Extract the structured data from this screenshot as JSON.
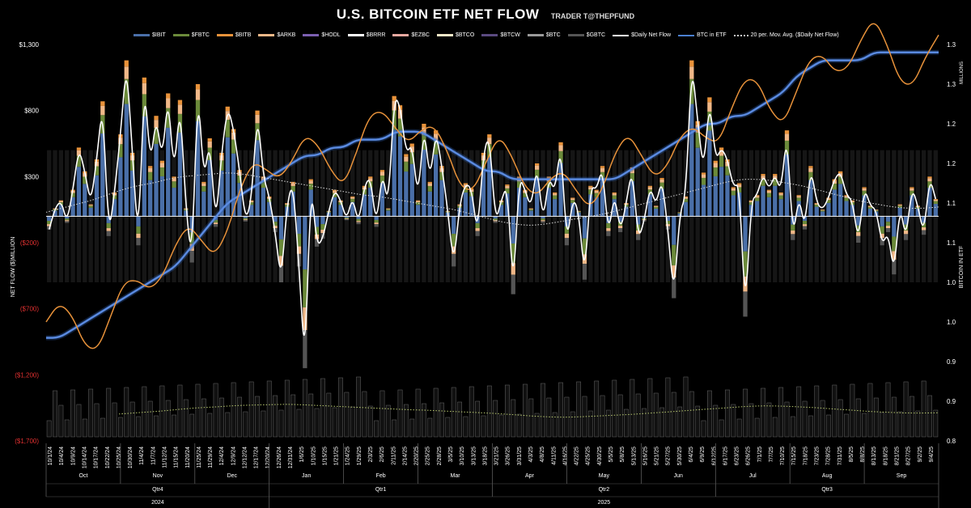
{
  "title": "U.S. BITCOIN ETF NET FLOW",
  "subtitle": "TRADER T@THEPFUND",
  "legend": [
    {
      "label": "$IBIT",
      "color": "#4a6fa8",
      "kind": "bar"
    },
    {
      "label": "$FBTC",
      "color": "#6b8a3a",
      "kind": "bar"
    },
    {
      "label": "$BITB",
      "color": "#e8923a",
      "kind": "bar"
    },
    {
      "label": "$ARKB",
      "color": "#f0b888",
      "kind": "bar"
    },
    {
      "label": "$HODL",
      "color": "#7b5fb0",
      "kind": "bar"
    },
    {
      "label": "$BRRR",
      "color": "#ffffff",
      "kind": "bar"
    },
    {
      "label": "$EZBC",
      "color": "#e8a8a0",
      "kind": "bar"
    },
    {
      "label": "$BTCO",
      "color": "#f4e8c8",
      "kind": "bar"
    },
    {
      "label": "$BTCW",
      "color": "#5a4a80",
      "kind": "bar"
    },
    {
      "label": "$BTC",
      "color": "#9a9a9a",
      "kind": "bar"
    },
    {
      "label": "$GBTC",
      "color": "#555555",
      "kind": "bar"
    },
    {
      "label": "$Daily Net Flow",
      "color": "#ffffff",
      "kind": "line"
    },
    {
      "label": "BTC in ETF",
      "color": "#4a7fd0",
      "kind": "line"
    },
    {
      "label": "20 per. Mov. Avg. ($Daily Net Flow)",
      "color": "#cccccc",
      "kind": "dotted"
    }
  ],
  "chart_data": {
    "type": "bar",
    "title": "U.S. BITCOIN ETF NET FLOW",
    "ylabel": "NET FLOW ($)MILLION",
    "y2label": "BITCOIN IN ETF",
    "y2unit": "MILLIONS",
    "ylim": [
      -1700,
      1300
    ],
    "y2lim": [
      0.8,
      1.3
    ],
    "yticks": [
      "$1,300",
      "$800",
      "$300",
      "($200)",
      "($700)",
      "($1,200)",
      "($1,700)"
    ],
    "yticks_values": [
      1300,
      800,
      300,
      -200,
      -700,
      -1200,
      -1700
    ],
    "y2ticks": [
      "1.3",
      "1.3",
      "1.2",
      "1.2",
      "1.1",
      "1.1",
      "1.0",
      "1.0",
      "0.9",
      "0.9",
      "0.8"
    ],
    "y2ticks_values": [
      1.3,
      1.25,
      1.2,
      1.15,
      1.1,
      1.05,
      1.0,
      0.95,
      0.9,
      0.85,
      0.8
    ],
    "date_labels": [
      "10/1/24",
      "10/4/24",
      "10/9/24",
      "10/14/24",
      "10/17/24",
      "10/22/24",
      "10/25/24",
      "10/30/24",
      "11/4/24",
      "11/7/24",
      "11/12/24",
      "11/15/24",
      "11/20/24",
      "11/25/24",
      "11/29/24",
      "12/4/24",
      "12/9/24",
      "12/12/24",
      "12/17/24",
      "12/20/24",
      "12/26/24",
      "12/31/24",
      "1/6/25",
      "1/10/25",
      "1/15/25",
      "1/21/25",
      "1/24/25",
      "1/29/25",
      "2/3/25",
      "2/6/25",
      "2/11/25",
      "2/14/25",
      "2/20/25",
      "2/25/25",
      "2/28/25",
      "3/5/25",
      "3/10/25",
      "3/13/25",
      "3/18/25",
      "3/21/25",
      "3/26/25",
      "3/31/25",
      "4/3/25",
      "4/8/25",
      "4/11/25",
      "4/16/25",
      "4/22/25",
      "4/25/25",
      "4/30/25",
      "5/5/25",
      "5/8/25",
      "5/13/25",
      "5/16/25",
      "5/21/25",
      "5/27/25",
      "5/30/25",
      "6/4/25",
      "6/9/25",
      "6/12/25",
      "6/17/25",
      "6/23/25",
      "6/26/25",
      "7/1/25",
      "7/7/25",
      "7/10/25",
      "7/15/25",
      "7/18/25",
      "7/23/25",
      "7/28/25",
      "7/31/25",
      "8/5/25",
      "8/8/25",
      "8/13/25",
      "8/18/25",
      "8/21/25",
      "8/27/25",
      "9/2/25",
      "9/4/25"
    ],
    "months": [
      "Oct",
      "Nov",
      "Dec",
      "Jan",
      "Feb",
      "Mar",
      "Apr",
      "May",
      "Jun",
      "Jul",
      "Aug",
      "Sep"
    ],
    "quarters": [
      "Qtr4",
      "Qtr1",
      "Qtr2",
      "Qtr3"
    ],
    "years": [
      "2024",
      "2025"
    ],
    "series": [
      {
        "name": "$Daily Net Flow",
        "values": [
          -100,
          60,
          120,
          -50,
          200,
          520,
          340,
          90,
          430,
          870,
          -150,
          180,
          620,
          1180,
          480,
          -220,
          1050,
          380,
          760,
          420,
          930,
          300,
          880,
          60,
          -350,
          1000,
          260,
          590,
          -80,
          480,
          830,
          660,
          350,
          -40,
          120,
          800,
          300,
          150,
          -120,
          -500,
          100,
          260,
          -380,
          -1150,
          280,
          -230,
          -170,
          40,
          200,
          120,
          -30,
          150,
          -60,
          230,
          300,
          -80,
          350,
          60,
          910,
          840,
          470,
          550,
          120,
          700,
          260,
          650,
          380,
          40,
          -380,
          90,
          250,
          210,
          -150,
          480,
          620,
          -50,
          120,
          240,
          -590,
          300,
          200,
          60,
          400,
          -50,
          300,
          180,
          560,
          -220,
          140,
          40,
          -480,
          230,
          200,
          380,
          -150,
          180,
          -120,
          100,
          370,
          -180,
          -40,
          230,
          80,
          290,
          -100,
          -620,
          30,
          150,
          1180,
          720,
          330,
          900,
          420,
          520,
          430,
          220,
          250,
          -760,
          120,
          160,
          320,
          200,
          320,
          180,
          650,
          -180,
          160,
          -100,
          380,
          100,
          50,
          140,
          280,
          340,
          160,
          120,
          -200,
          220,
          80,
          50,
          -220,
          -120,
          -440,
          90,
          -180,
          220,
          80,
          -140,
          300,
          130
        ]
      },
      {
        "name": "BTC in ETF",
        "values": [
          0.93,
          0.93,
          0.94,
          0.95,
          0.96,
          0.97,
          0.98,
          0.99,
          1.0,
          1.01,
          1.02,
          1.04,
          1.06,
          1.08,
          1.1,
          1.11,
          1.12,
          1.13,
          1.14,
          1.15,
          1.16,
          1.16,
          1.17,
          1.17,
          1.18,
          1.18,
          1.18,
          1.19,
          1.19,
          1.19,
          1.18,
          1.17,
          1.16,
          1.15,
          1.14,
          1.14,
          1.13,
          1.13,
          1.13,
          1.13,
          1.13,
          1.13,
          1.13,
          1.13,
          1.13,
          1.14,
          1.15,
          1.16,
          1.17,
          1.18,
          1.19,
          1.2,
          1.2,
          1.21,
          1.21,
          1.22,
          1.23,
          1.24,
          1.26,
          1.27,
          1.28,
          1.28,
          1.28,
          1.28,
          1.29,
          1.29,
          1.29,
          1.29,
          1.29,
          1.29
        ]
      },
      {
        "name": "20 per. Mov. Avg. ($Daily Net Flow)",
        "values": [
          30,
          60,
          90,
          120,
          160,
          200,
          230,
          250,
          280,
          300,
          310,
          320,
          330,
          320,
          300,
          280,
          260,
          240,
          220,
          200,
          180,
          160,
          150,
          130,
          110,
          90,
          70,
          50,
          20,
          -10,
          -40,
          -60,
          -70,
          -60,
          -40,
          -20,
          0,
          20,
          50,
          80,
          110,
          140,
          170,
          200,
          230,
          260,
          280,
          280,
          270,
          250,
          230,
          200,
          170,
          140,
          110,
          90,
          70,
          60,
          60,
          70
        ]
      }
    ],
    "secondary_chart": {
      "type": "bar",
      "ylim": [
        0,
        1
      ]
    }
  }
}
